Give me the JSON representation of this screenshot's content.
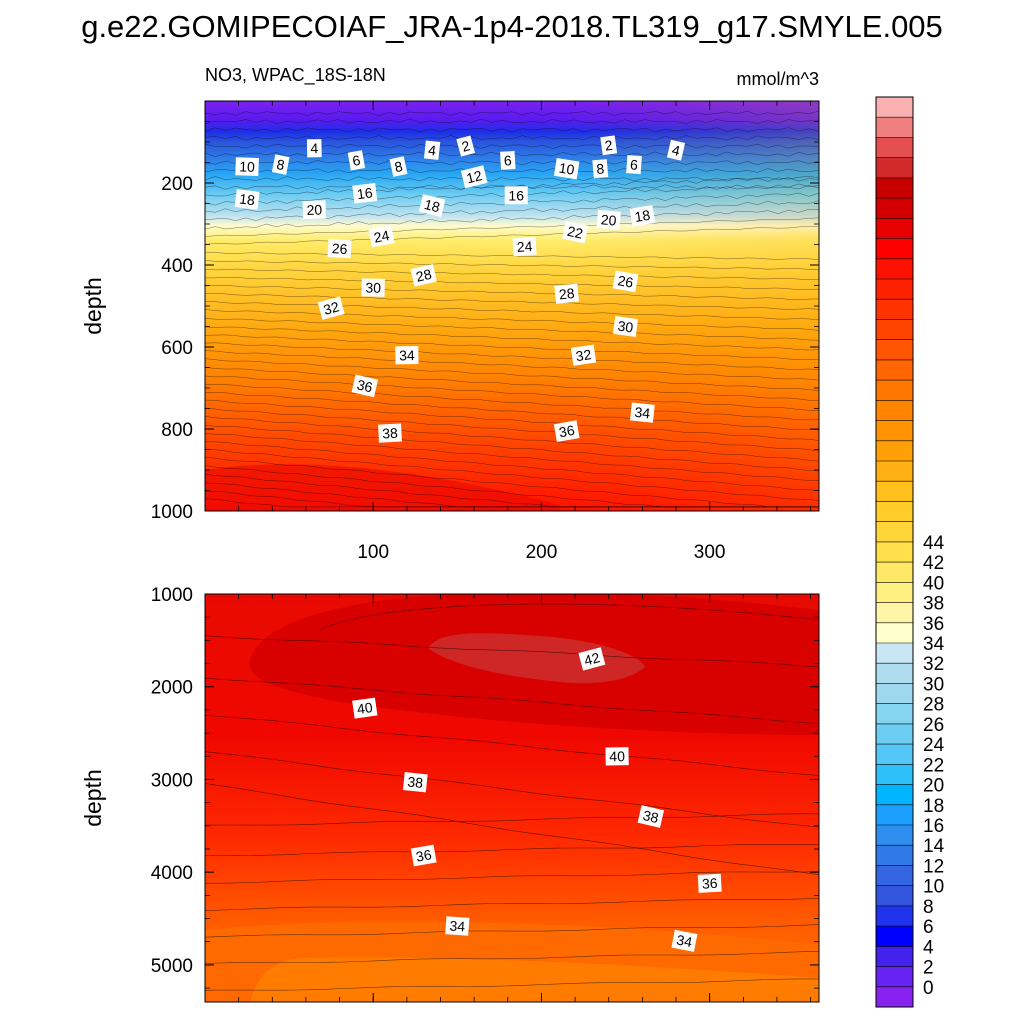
{
  "title": "g.e22.GOMIPECOIAF_JRA-1p4-2018.TL319_g17.SMYLE.005",
  "panel_left_title": "NO3, WPAC_18S-18N",
  "panel_right_title": "mmol/m^3",
  "chart_data": [
    {
      "type": "contour",
      "name": "upper-panel",
      "title": "NO3, WPAC_18S-18N",
      "units": "mmol/m^3",
      "xlabel": "",
      "ylabel": "depth",
      "xlim": [
        0,
        365
      ],
      "ylim": [
        1000,
        0
      ],
      "xticks": [
        100,
        200,
        300
      ],
      "yticks": [
        200,
        400,
        600,
        800,
        1000
      ],
      "contour_labels": [
        {
          "value": 2,
          "x": 155,
          "y": 110
        },
        {
          "value": 2,
          "x": 240,
          "y": 108
        },
        {
          "value": 4,
          "x": 65,
          "y": 115
        },
        {
          "value": 4,
          "x": 135,
          "y": 120
        },
        {
          "value": 4,
          "x": 280,
          "y": 120
        },
        {
          "value": 6,
          "x": 90,
          "y": 145
        },
        {
          "value": 6,
          "x": 180,
          "y": 145
        },
        {
          "value": 6,
          "x": 255,
          "y": 155
        },
        {
          "value": 8,
          "x": 45,
          "y": 155
        },
        {
          "value": 8,
          "x": 115,
          "y": 160
        },
        {
          "value": 8,
          "x": 235,
          "y": 165
        },
        {
          "value": 10,
          "x": 25,
          "y": 160
        },
        {
          "value": 10,
          "x": 215,
          "y": 165
        },
        {
          "value": 12,
          "x": 160,
          "y": 185
        },
        {
          "value": 16,
          "x": 95,
          "y": 225
        },
        {
          "value": 16,
          "x": 185,
          "y": 230
        },
        {
          "value": 18,
          "x": 25,
          "y": 240
        },
        {
          "value": 18,
          "x": 135,
          "y": 255
        },
        {
          "value": 18,
          "x": 260,
          "y": 280
        },
        {
          "value": 20,
          "x": 65,
          "y": 265
        },
        {
          "value": 20,
          "x": 240,
          "y": 290
        },
        {
          "value": 22,
          "x": 220,
          "y": 320
        },
        {
          "value": 24,
          "x": 105,
          "y": 330
        },
        {
          "value": 24,
          "x": 190,
          "y": 355
        },
        {
          "value": 26,
          "x": 80,
          "y": 360
        },
        {
          "value": 26,
          "x": 250,
          "y": 440
        },
        {
          "value": 28,
          "x": 130,
          "y": 425
        },
        {
          "value": 28,
          "x": 215,
          "y": 470
        },
        {
          "value": 30,
          "x": 100,
          "y": 455
        },
        {
          "value": 30,
          "x": 250,
          "y": 550
        },
        {
          "value": 32,
          "x": 75,
          "y": 505
        },
        {
          "value": 32,
          "x": 225,
          "y": 620
        },
        {
          "value": 34,
          "x": 120,
          "y": 620
        },
        {
          "value": 34,
          "x": 260,
          "y": 760
        },
        {
          "value": 36,
          "x": 95,
          "y": 695
        },
        {
          "value": 36,
          "x": 215,
          "y": 805
        },
        {
          "value": 38,
          "x": 110,
          "y": 810
        }
      ]
    },
    {
      "type": "contour",
      "name": "lower-panel",
      "xlabel": "",
      "ylabel": "depth",
      "xlim": [
        0,
        365
      ],
      "ylim": [
        5400,
        1000
      ],
      "xticks": [
        100,
        200,
        300
      ],
      "yticks": [
        1000,
        2000,
        3000,
        4000,
        5000
      ],
      "contour_labels": [
        {
          "value": 42,
          "x": 230,
          "y": 1700
        },
        {
          "value": 40,
          "x": 95,
          "y": 2230
        },
        {
          "value": 40,
          "x": 245,
          "y": 2750
        },
        {
          "value": 38,
          "x": 125,
          "y": 3030
        },
        {
          "value": 38,
          "x": 265,
          "y": 3400
        },
        {
          "value": 36,
          "x": 130,
          "y": 3820
        },
        {
          "value": 36,
          "x": 300,
          "y": 4120
        },
        {
          "value": 34,
          "x": 150,
          "y": 4580
        },
        {
          "value": 34,
          "x": 285,
          "y": 4740
        }
      ]
    }
  ],
  "colorbar": {
    "labels": [
      "0",
      "2",
      "4",
      "6",
      "8",
      "10",
      "12",
      "14",
      "16",
      "18",
      "20",
      "22",
      "24",
      "26",
      "28",
      "30",
      "32",
      "34",
      "36",
      "38",
      "40",
      "42",
      "44"
    ],
    "colors": [
      "#8822ee",
      "#6622ee",
      "#4422ee",
      "#0000ff",
      "#2233ee",
      "#3355dd",
      "#3366e0",
      "#2f7ae6",
      "#2f8ff0",
      "#1ba0ff",
      "#00b4ff",
      "#2ec0f8",
      "#55c6f5",
      "#6ccef2",
      "#85d4f0",
      "#9ed8ee",
      "#b0dcef",
      "#c8e6f3",
      "#ffffcc",
      "#fff5a8",
      "#fff082",
      "#ffe866",
      "#ffdf4a",
      "#ffd63a",
      "#ffcc2a",
      "#ffc01e",
      "#ffb012",
      "#ffa008",
      "#ff9300",
      "#ff8500",
      "#ff7700",
      "#ff6500",
      "#ff5500",
      "#ff4400",
      "#ff3300",
      "#ff2200",
      "#ff1100",
      "#ff0000",
      "#e80000",
      "#d40000",
      "#c80000",
      "#d22a2a",
      "#e45050",
      "#f08080",
      "#fab0b0"
    ]
  }
}
